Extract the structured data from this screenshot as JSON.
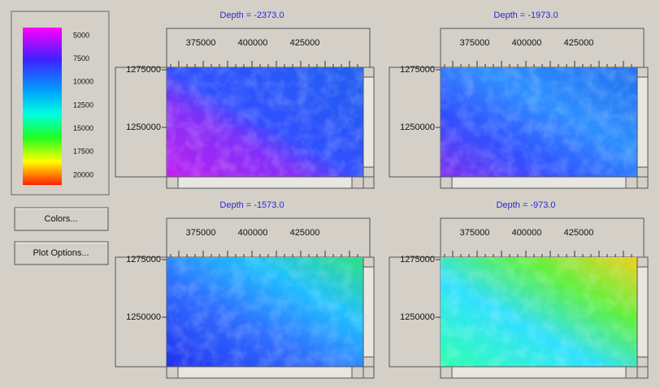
{
  "legend": {
    "labels": [
      "5000",
      "7500",
      "10000",
      "12500",
      "15000",
      "17500",
      "20000"
    ]
  },
  "buttons": [
    "Colors...",
    "Plot Options..."
  ],
  "panels": [
    {
      "title": "Depth = -2373.0",
      "x_ticks": [
        "375000",
        "400000",
        "425000"
      ],
      "y_ticks": [
        "1275000",
        "1250000"
      ]
    },
    {
      "title": "Depth = -1973.0",
      "x_ticks": [
        "375000",
        "400000",
        "425000"
      ],
      "y_ticks": [
        "1275000",
        "1250000"
      ]
    },
    {
      "title": "Depth = -1573.0",
      "x_ticks": [
        "375000",
        "400000",
        "425000"
      ],
      "y_ticks": [
        "1275000",
        "1250000"
      ]
    },
    {
      "title": "Depth = -973.0",
      "x_ticks": [
        "375000",
        "400000",
        "425000"
      ],
      "y_ticks": [
        "1275000",
        "1250000"
      ]
    }
  ]
}
